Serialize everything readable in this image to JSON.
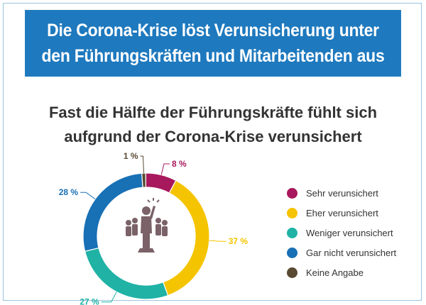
{
  "header": {
    "title_line1": "Die Corona-Krise löst Verunsicherung unter",
    "title_line2": "den Führungskräften und Mitarbeitenden aus"
  },
  "chart_data": {
    "type": "pie",
    "title_line1": "Fast die Hälfte der Führungskräfte fühlt sich",
    "title_line2": "aufgrund der Corona-Krise verunsichert",
    "unit": "%",
    "categories": [
      "Sehr verunsichert",
      "Eher verunsichert",
      "Weniger verunsichert",
      "Gar nicht verunsichert",
      "Keine Angabe"
    ],
    "values": [
      8,
      37,
      27,
      28,
      1
    ],
    "labels": [
      "8 %",
      "37 %",
      "27 %",
      "28 %",
      "1 %"
    ],
    "colors": [
      "#a8185d",
      "#f5c400",
      "#1fb2a5",
      "#1870b5",
      "#5a4a32"
    ],
    "legend_position": "right",
    "center_icon": "leader-team-icon"
  }
}
